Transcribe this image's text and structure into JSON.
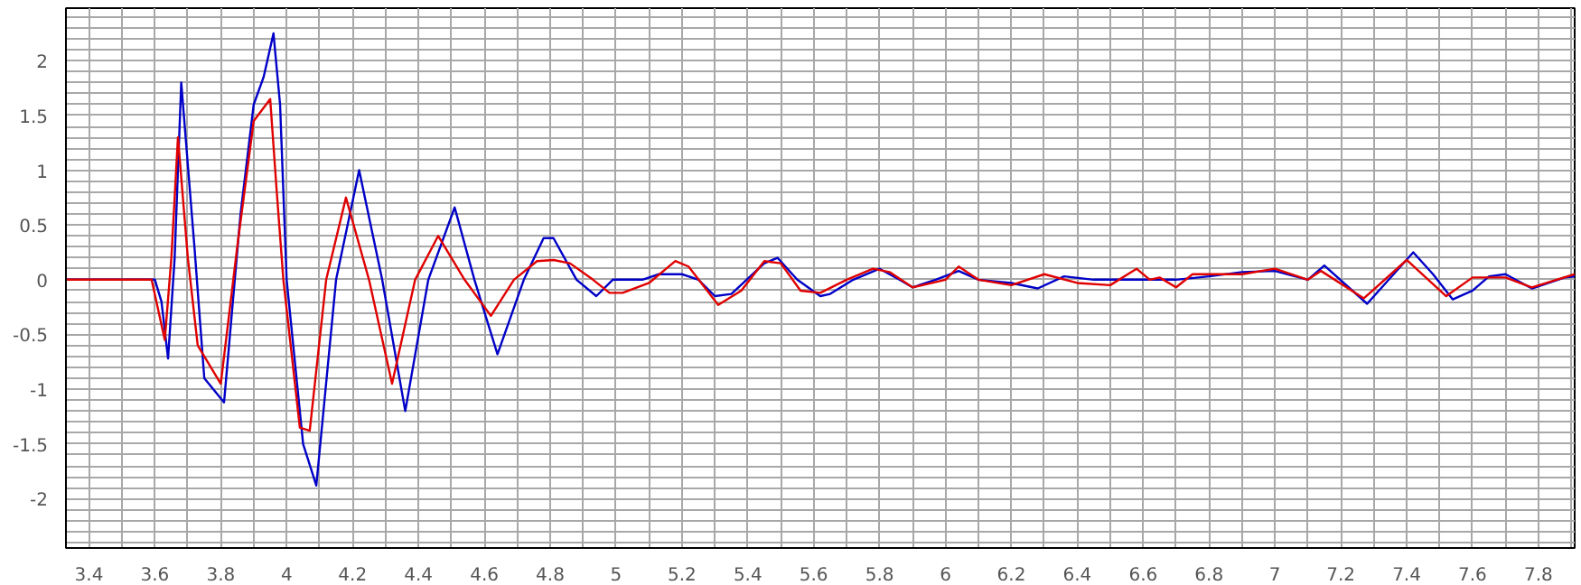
{
  "chart_data": {
    "type": "line",
    "xlim": [
      3.33,
      7.91
    ],
    "ylim": [
      -2.45,
      2.48
    ],
    "grid": true,
    "marker": "none",
    "line_style": "solid",
    "xticks": [
      3.4,
      {
        "value": 3.5,
        "label": null
      },
      3.6,
      {
        "value": 3.7,
        "label": null
      },
      3.8,
      {
        "value": 3.9,
        "label": null
      },
      4,
      {
        "value": 4.1,
        "label": null
      },
      4.2,
      {
        "value": 4.3,
        "label": null
      },
      4.4,
      {
        "value": 4.5,
        "label": null
      },
      4.6,
      {
        "value": 4.7,
        "label": null
      },
      4.8,
      {
        "value": 4.9,
        "label": null
      },
      5,
      {
        "value": 5.1,
        "label": null
      },
      5.2,
      {
        "value": 5.3,
        "label": null
      },
      5.4,
      {
        "value": 5.5,
        "label": null
      },
      5.6,
      {
        "value": 5.7,
        "label": null
      },
      5.8,
      {
        "value": 5.9,
        "label": null
      },
      6,
      {
        "value": 6.1,
        "label": null
      },
      6.2,
      {
        "value": 6.3,
        "label": null
      },
      6.4,
      {
        "value": 6.5,
        "label": null
      },
      6.6,
      {
        "value": 6.7,
        "label": null
      },
      6.8,
      {
        "value": 6.9,
        "label": null
      },
      7,
      {
        "value": 7.1,
        "label": null
      },
      7.2,
      {
        "value": 7.3,
        "label": null
      },
      7.4,
      {
        "value": 7.5,
        "label": null
      },
      7.6,
      {
        "value": 7.7,
        "label": null
      },
      7.8,
      {
        "value": 7.9,
        "label": null
      }
    ],
    "yticks": [
      {
        "value": -2.4,
        "label": null
      },
      {
        "value": -2.3,
        "label": null
      },
      {
        "value": -2.2,
        "label": null
      },
      {
        "value": -2.1,
        "label": null
      },
      -2,
      {
        "value": -1.9,
        "label": null
      },
      {
        "value": -1.8,
        "label": null
      },
      {
        "value": -1.7,
        "label": null
      },
      {
        "value": -1.6,
        "label": null
      },
      -1.5,
      {
        "value": -1.4,
        "label": null
      },
      {
        "value": -1.3,
        "label": null
      },
      {
        "value": -1.2,
        "label": null
      },
      {
        "value": -1.1,
        "label": null
      },
      -1,
      {
        "value": -0.9,
        "label": null
      },
      {
        "value": -0.8,
        "label": null
      },
      {
        "value": -0.7,
        "label": null
      },
      {
        "value": -0.6,
        "label": null
      },
      -0.5,
      {
        "value": -0.4,
        "label": null
      },
      {
        "value": -0.3,
        "label": null
      },
      {
        "value": -0.2,
        "label": null
      },
      {
        "value": -0.1,
        "label": null
      },
      0,
      {
        "value": 0.1,
        "label": null
      },
      {
        "value": 0.2,
        "label": null
      },
      {
        "value": 0.3,
        "label": null
      },
      {
        "value": 0.4,
        "label": null
      },
      0.5,
      {
        "value": 0.6,
        "label": null
      },
      {
        "value": 0.7,
        "label": null
      },
      {
        "value": 0.8,
        "label": null
      },
      {
        "value": 0.9,
        "label": null
      },
      1,
      {
        "value": 1.1,
        "label": null
      },
      {
        "value": 1.2,
        "label": null
      },
      {
        "value": 1.3,
        "label": null
      },
      {
        "value": 1.4,
        "label": null
      },
      1.5,
      {
        "value": 1.6,
        "label": null
      },
      {
        "value": 1.7,
        "label": null
      },
      {
        "value": 1.8,
        "label": null
      },
      {
        "value": 1.9,
        "label": null
      },
      2,
      {
        "value": 2.1,
        "label": null
      },
      {
        "value": 2.2,
        "label": null
      },
      {
        "value": 2.3,
        "label": null
      },
      {
        "value": 2.4,
        "label": null
      }
    ],
    "series": [
      {
        "color": "#0000c8",
        "x": [
          3.33,
          3.6,
          3.62,
          3.64,
          3.66,
          3.68,
          3.72,
          3.75,
          3.81,
          3.86,
          3.9,
          3.93,
          3.96,
          3.98,
          4.0,
          4.05,
          4.09,
          4.15,
          4.22,
          4.29,
          4.36,
          4.43,
          4.51,
          4.57,
          4.64,
          4.72,
          4.78,
          4.81,
          4.88,
          4.94,
          4.99,
          5.03,
          5.08,
          5.13,
          5.2,
          5.25,
          5.3,
          5.35,
          5.45,
          5.49,
          5.55,
          5.62,
          5.65,
          5.72,
          5.8,
          5.86,
          5.9,
          5.97,
          6.04,
          6.1,
          6.2,
          6.28,
          6.36,
          6.45,
          6.55,
          6.7,
          6.8,
          6.9,
          7.0,
          7.1,
          7.15,
          7.28,
          7.42,
          7.48,
          7.54,
          7.6,
          7.65,
          7.7,
          7.78,
          7.88,
          7.91
        ],
        "values": [
          0,
          0,
          -0.2,
          -0.72,
          0.2,
          1.8,
          0.3,
          -0.9,
          -1.12,
          0.6,
          1.6,
          1.85,
          2.25,
          1.6,
          0,
          -1.5,
          -1.88,
          0,
          1.0,
          0,
          -1.2,
          0,
          0.66,
          0,
          -0.68,
          0,
          0.38,
          0.38,
          0,
          -0.15,
          0,
          0,
          0,
          0.05,
          0.05,
          0,
          -0.15,
          -0.13,
          0.15,
          0.2,
          0,
          -0.15,
          -0.13,
          0,
          0.1,
          0,
          -0.07,
          0,
          0.08,
          0,
          -0.03,
          -0.08,
          0.03,
          0,
          0,
          0,
          0.03,
          0.07,
          0.08,
          0,
          0.13,
          -0.22,
          0.25,
          0.05,
          -0.18,
          -0.1,
          0.03,
          0.05,
          -0.08,
          0.02,
          0.03
        ]
      },
      {
        "color": "#e00000",
        "x": [
          3.33,
          3.59,
          3.63,
          3.65,
          3.67,
          3.7,
          3.73,
          3.8,
          3.85,
          3.9,
          3.95,
          3.97,
          3.99,
          4.04,
          4.07,
          4.12,
          4.18,
          4.25,
          4.32,
          4.39,
          4.46,
          4.54,
          4.62,
          4.69,
          4.76,
          4.81,
          4.86,
          4.93,
          4.98,
          5.02,
          5.1,
          5.18,
          5.22,
          5.31,
          5.38,
          5.45,
          5.5,
          5.56,
          5.62,
          5.7,
          5.78,
          5.83,
          5.9,
          6.0,
          6.04,
          6.1,
          6.2,
          6.3,
          6.4,
          6.5,
          6.58,
          6.62,
          6.65,
          6.7,
          6.75,
          6.85,
          6.9,
          7.0,
          7.1,
          7.14,
          7.27,
          7.4,
          7.52,
          7.6,
          7.7,
          7.78,
          7.91
        ],
        "values": [
          0,
          0,
          -0.55,
          0.2,
          1.3,
          0.2,
          -0.6,
          -0.95,
          0.3,
          1.45,
          1.65,
          0.8,
          0,
          -1.35,
          -1.38,
          0,
          0.75,
          0,
          -0.95,
          0,
          0.4,
          0,
          -0.33,
          0,
          0.17,
          0.18,
          0.15,
          0,
          -0.12,
          -0.12,
          -0.03,
          0.17,
          0.12,
          -0.23,
          -0.1,
          0.17,
          0.15,
          -0.1,
          -0.12,
          0,
          0.1,
          0.07,
          -0.07,
          0,
          0.12,
          0,
          -0.05,
          0.05,
          -0.03,
          -0.05,
          0.1,
          0,
          0.02,
          -0.07,
          0.05,
          0.05,
          0.05,
          0.1,
          0,
          0.08,
          -0.17,
          0.18,
          -0.15,
          0.02,
          0.02,
          -0.07,
          0.05
        ]
      }
    ]
  }
}
